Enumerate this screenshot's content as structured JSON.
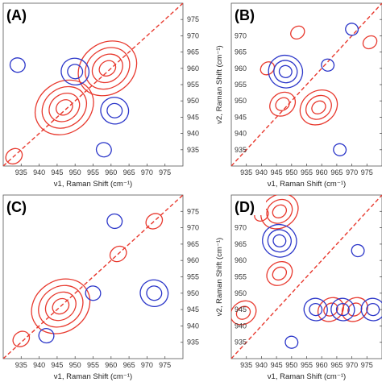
{
  "chart_data": [
    {
      "type": "contour",
      "panel_label": "(A)",
      "xlabel": "ν1, Raman Shift (cm⁻¹)",
      "ylabel": "",
      "xlim": [
        930,
        980
      ],
      "ylim": [
        930,
        980
      ],
      "xticks": [
        "935",
        "940",
        "945",
        "950",
        "955",
        "960",
        "965",
        "970",
        "975"
      ],
      "yticks": [
        "935",
        "940",
        "945",
        "950",
        "955",
        "960",
        "965",
        "970",
        "975"
      ],
      "diagonal": true,
      "positive_color": "#e8392e",
      "negative_color": "#2b36c9",
      "positive_features": [
        {
          "x": 947,
          "y": 948,
          "levels": 4
        },
        {
          "x": 959,
          "y": 960,
          "levels": 4
        },
        {
          "x": 933,
          "y": 933,
          "levels": 1
        }
      ],
      "negative_features": [
        {
          "x": 950,
          "y": 959,
          "levels": 2
        },
        {
          "x": 961,
          "y": 947,
          "levels": 2
        },
        {
          "x": 934,
          "y": 961,
          "levels": 1
        },
        {
          "x": 958,
          "y": 935,
          "levels": 1
        }
      ]
    },
    {
      "type": "contour",
      "panel_label": "(B)",
      "xlabel": "ν1, Raman Shift (cm⁻¹)",
      "ylabel": "ν2, Raman Shift (cm⁻¹)",
      "xlim": [
        930,
        980
      ],
      "ylim": [
        930,
        980
      ],
      "xticks": [
        "935",
        "940",
        "945",
        "950",
        "955",
        "960",
        "965",
        "970",
        "975"
      ],
      "yticks": [
        "935",
        "940",
        "945",
        "950",
        "955",
        "960",
        "965",
        "970",
        "975"
      ],
      "diagonal": true,
      "positive_color": "#e8392e",
      "negative_color": "#2b36c9",
      "positive_features": [
        {
          "x": 959,
          "y": 948,
          "levels": 3
        },
        {
          "x": 947,
          "y": 949,
          "levels": 2
        },
        {
          "x": 952,
          "y": 971,
          "levels": 1
        },
        {
          "x": 942,
          "y": 960,
          "levels": 1
        },
        {
          "x": 976,
          "y": 968,
          "levels": 1
        }
      ],
      "negative_features": [
        {
          "x": 948,
          "y": 959,
          "levels": 3
        },
        {
          "x": 962,
          "y": 961,
          "levels": 1
        },
        {
          "x": 970,
          "y": 972,
          "levels": 1
        },
        {
          "x": 966,
          "y": 935,
          "levels": 1
        }
      ]
    },
    {
      "type": "contour",
      "panel_label": "(C)",
      "xlabel": "ν1, Raman Shift (cm⁻¹)",
      "ylabel": "",
      "xlim": [
        930,
        980
      ],
      "ylim": [
        930,
        980
      ],
      "xticks": [
        "935",
        "940",
        "945",
        "950",
        "955",
        "960",
        "965",
        "970",
        "975"
      ],
      "yticks": [
        "935",
        "940",
        "945",
        "950",
        "955",
        "960",
        "965",
        "970",
        "975"
      ],
      "diagonal": true,
      "positive_color": "#e8392e",
      "negative_color": "#2b36c9",
      "positive_features": [
        {
          "x": 946,
          "y": 946,
          "levels": 4
        },
        {
          "x": 962,
          "y": 962,
          "levels": 1
        },
        {
          "x": 935,
          "y": 936,
          "levels": 1
        },
        {
          "x": 972,
          "y": 972,
          "levels": 1
        }
      ],
      "negative_features": [
        {
          "x": 961,
          "y": 972,
          "levels": 1
        },
        {
          "x": 972,
          "y": 950,
          "levels": 2
        },
        {
          "x": 955,
          "y": 950,
          "levels": 1
        },
        {
          "x": 942,
          "y": 937,
          "levels": 1
        }
      ]
    },
    {
      "type": "contour",
      "panel_label": "(D)",
      "xlabel": "ν1, Raman Shift (cm⁻¹)",
      "ylabel": "ν2, Raman Shift (cm⁻¹)",
      "xlim": [
        930,
        980
      ],
      "ylim": [
        930,
        980
      ],
      "xticks": [
        "935",
        "940",
        "945",
        "950",
        "955",
        "960",
        "965",
        "970",
        "975"
      ],
      "yticks": [
        "935",
        "940",
        "945",
        "950",
        "955",
        "960",
        "965",
        "970",
        "975"
      ],
      "diagonal": true,
      "positive_color": "#e8392e",
      "negative_color": "#2b36c9",
      "positive_features": [
        {
          "x": 946,
          "y": 975,
          "levels": 3
        },
        {
          "x": 946,
          "y": 956,
          "levels": 2
        },
        {
          "x": 963,
          "y": 945,
          "levels": 2
        },
        {
          "x": 971,
          "y": 945,
          "levels": 2
        },
        {
          "x": 934,
          "y": 944,
          "levels": 2
        },
        {
          "x": 940,
          "y": 974,
          "levels": 1
        }
      ],
      "negative_features": [
        {
          "x": 946,
          "y": 966,
          "levels": 3
        },
        {
          "x": 958,
          "y": 945,
          "levels": 2
        },
        {
          "x": 967,
          "y": 945,
          "levels": 2
        },
        {
          "x": 977,
          "y": 945,
          "levels": 2
        },
        {
          "x": 950,
          "y": 935,
          "levels": 1
        },
        {
          "x": 972,
          "y": 963,
          "levels": 1
        }
      ]
    }
  ]
}
